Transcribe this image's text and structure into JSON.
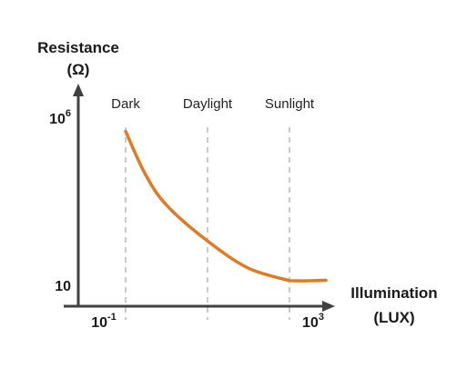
{
  "chart_data": {
    "type": "line",
    "ylabel": [
      "Resistance",
      "(Ω)"
    ],
    "xlabel": [
      "Illumination",
      "(LUX)"
    ],
    "x_scale": "log",
    "y_scale": "log",
    "x_ticks": [
      {
        "base": "10",
        "exp": "-1",
        "value": 0.1
      },
      {
        "base": "10",
        "exp": "3",
        "value": 1000
      }
    ],
    "y_ticks": [
      {
        "base": "10",
        "exp": "6",
        "value": 1000000
      },
      {
        "base": "10",
        "exp": "",
        "value": 10
      }
    ],
    "xlim": [
      0.1,
      1000
    ],
    "ylim": [
      10,
      1000000
    ],
    "regions": [
      {
        "label": "Dark",
        "x": 0.1
      },
      {
        "label": "Daylight",
        "x": 10
      },
      {
        "label": "Sunlight",
        "x": 1000
      }
    ],
    "series": [
      {
        "color": "#E07B24",
        "x": [
          0.1,
          0.3,
          1,
          10,
          100,
          1000
        ],
        "y": [
          420000,
          25000,
          3200,
          300,
          50,
          22
        ]
      }
    ],
    "colors": {
      "axis": "#404040",
      "curve": "#E07B24",
      "guide": "#A6A6A6"
    },
    "grid": false
  }
}
